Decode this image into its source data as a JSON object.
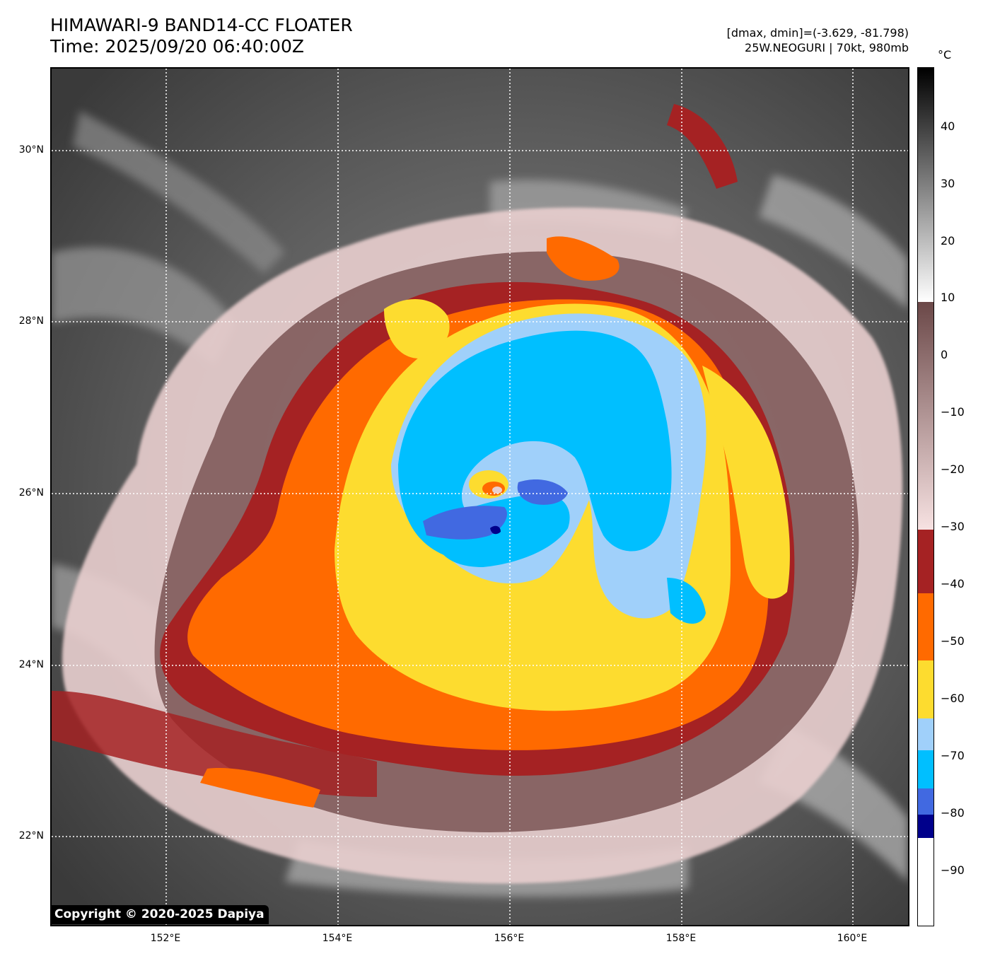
{
  "header": {
    "title_line1": "HIMAWARI-9 BAND14-CC FLOATER",
    "title_line2": "Time: 2025/09/20 06:40:00Z",
    "info_line1": "[dmax, dmin]=(-3.629, -81.798)",
    "info_line2": "25W.NEOGURI | 70kt, 980mb"
  },
  "map": {
    "latitude_labels": [
      "30°N",
      "28°N",
      "26°N",
      "24°N",
      "22°N"
    ],
    "longitude_labels": [
      "152°E",
      "154°E",
      "156°E",
      "158°E",
      "160°E"
    ],
    "lat_range": [
      20.9,
      30.95
    ],
    "lon_range": [
      150.66,
      160.68
    ],
    "copyright": "Copyright © 2020-2025 Dapiya"
  },
  "colorbar": {
    "unit": "°C",
    "tick_labels": [
      "40",
      "30",
      "20",
      "10",
      "0",
      "−10",
      "−20",
      "−30",
      "−40",
      "−50",
      "−60",
      "−70",
      "−80",
      "−90"
    ],
    "range": [
      -100,
      50
    ],
    "colors": {
      "below_minus90": "#ffffff",
      "minus90_to_minus80": "#00008b",
      "minus80_to_minus75": "#4169e1",
      "minus75_to_minus65": "#00bfff",
      "minus65_to_minus60": "#a0d0fa",
      "minus60_to_minus50": "#fddc2f",
      "minus50_to_minus40": "#ff6a00",
      "minus40_to_minus30": "#a52223",
      "minus30_to_10": "#f7e2e2 to #6b4848",
      "above_10": "#ffffff to #000000"
    }
  }
}
